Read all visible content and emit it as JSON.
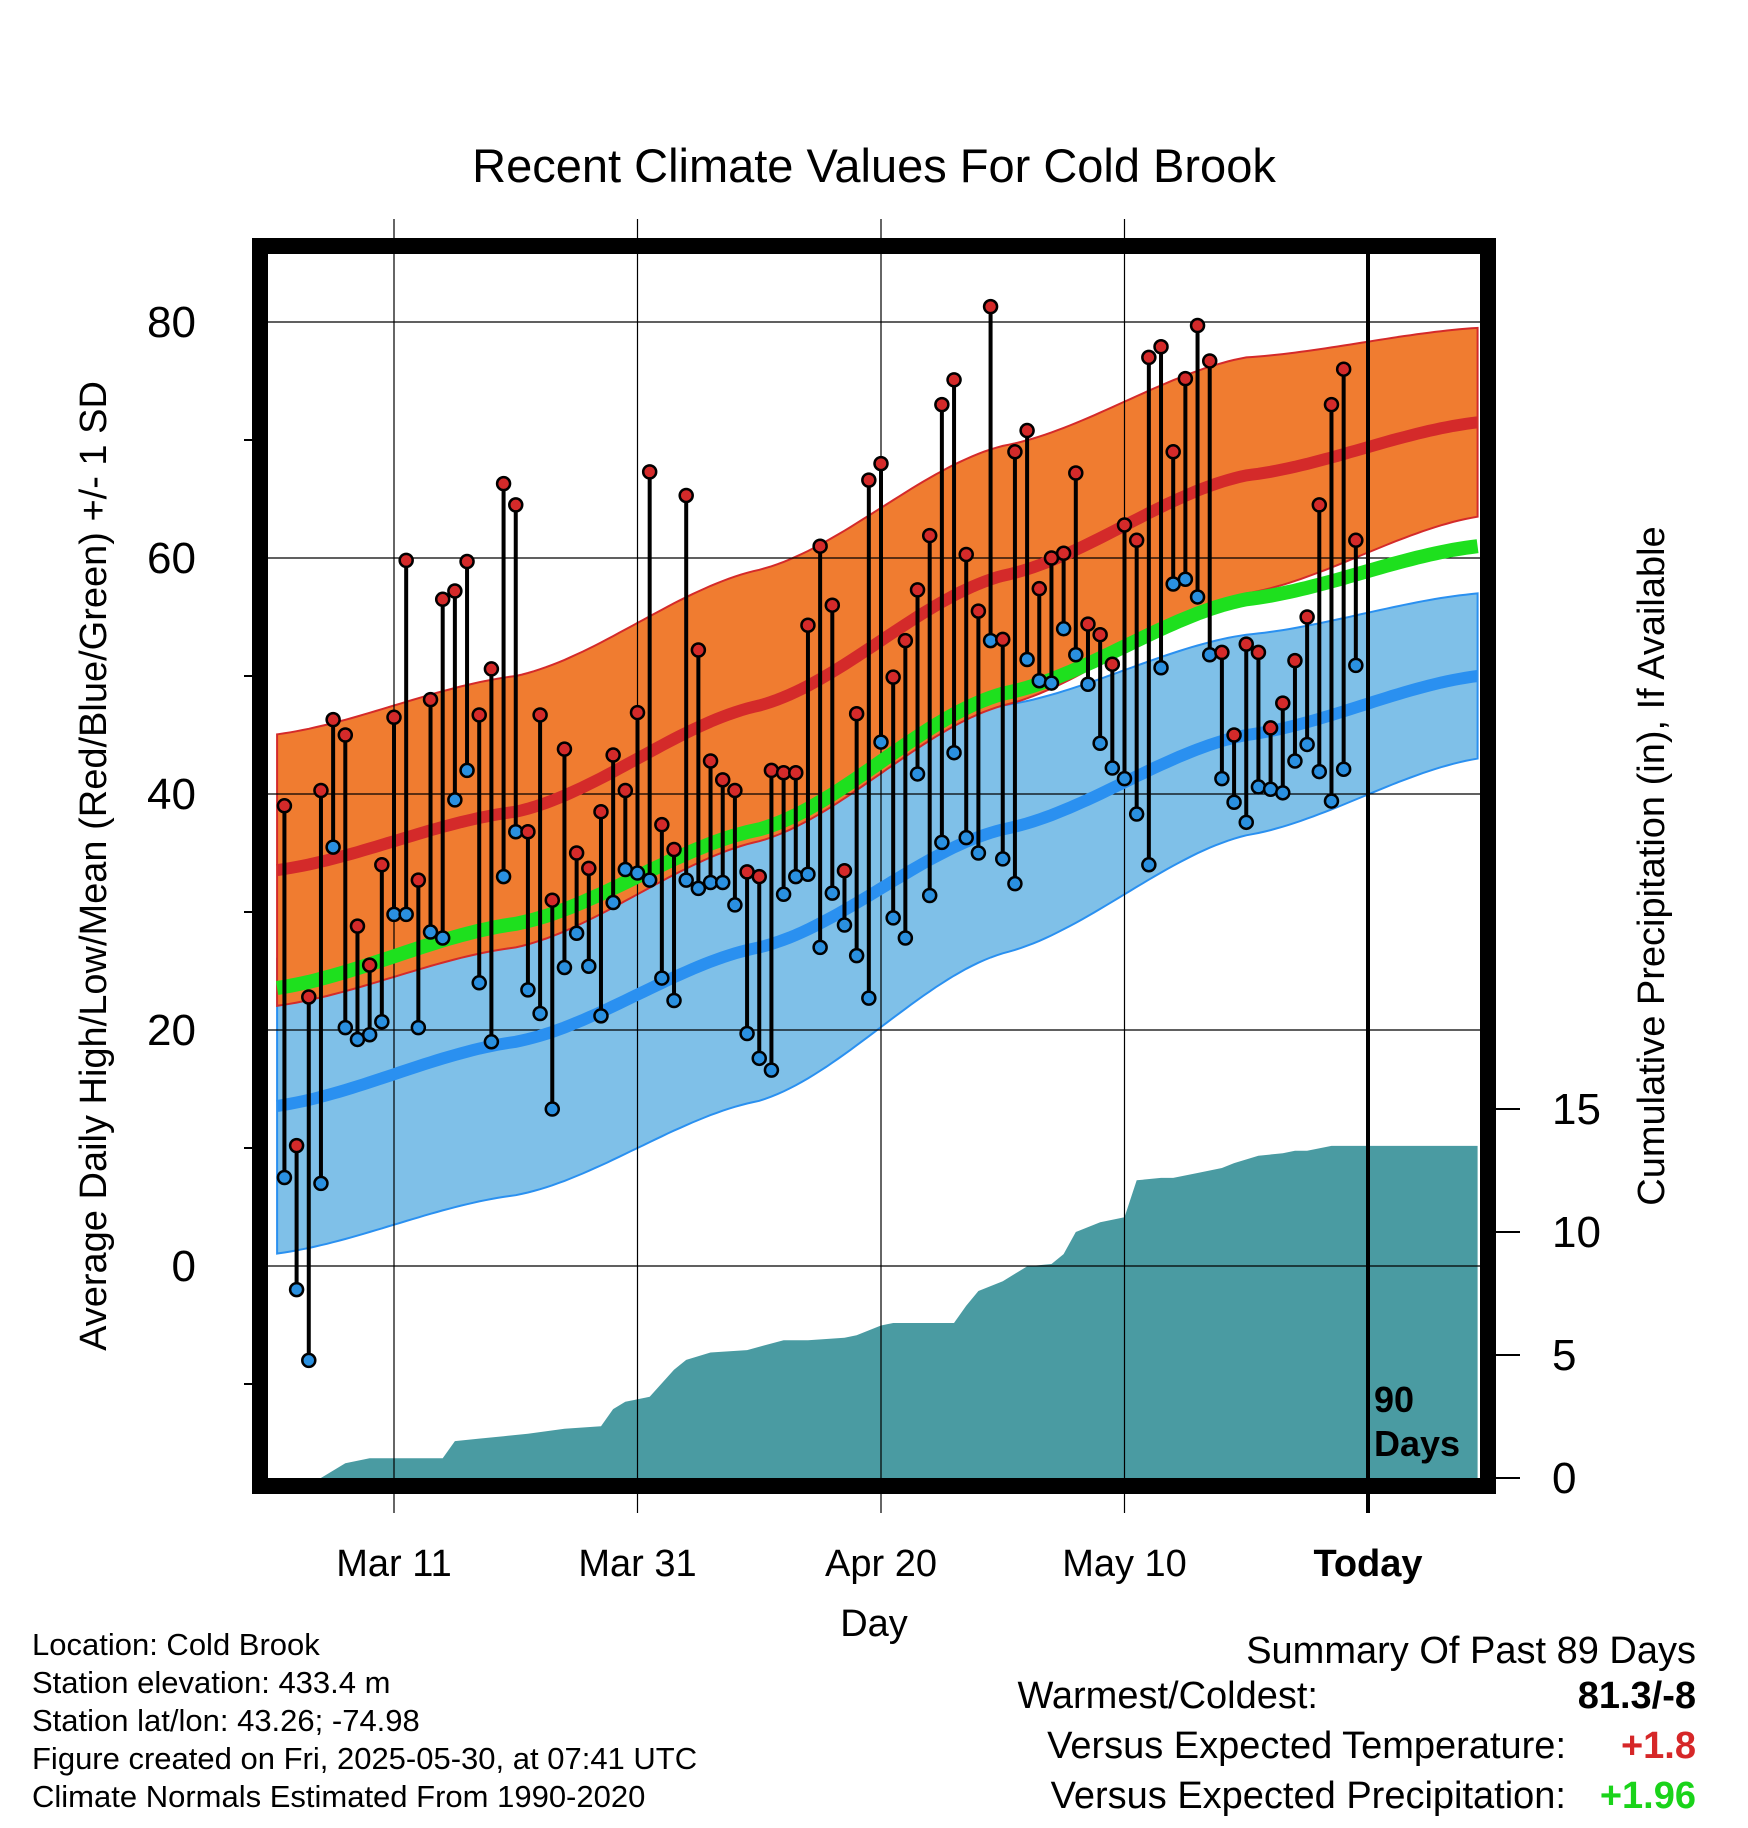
{
  "title": "Recent Climate Values For Cold Brook",
  "meta": {
    "location": "Location: Cold Brook",
    "elevation": "Station elevation: 433.4 m",
    "latlon": "Station lat/lon: 43.26; -74.98",
    "created": "Figure created on Fri, 2025-05-30, at 07:41 UTC",
    "normals": "Climate Normals Estimated From 1990-2020"
  },
  "summary": {
    "heading": "Summary Of Past 89 Days",
    "rows": [
      {
        "label": "Warmest/Coldest:",
        "value": "81.3/-8",
        "color": "#000000"
      },
      {
        "label": "Versus Expected Temperature:",
        "value": "+1.8",
        "color": "#d62728"
      },
      {
        "label": "Versus Expected Precipitation:",
        "value": "+1.96",
        "color": "#1ad31a"
      }
    ]
  },
  "chart_data": {
    "type": "line",
    "title": "Recent Climate Values For Cold Brook",
    "xlabel": "Day",
    "ylabel": "Average Daily High/Low/Mean (Red/Blue/Green) +/- 1 SD",
    "y2label": "Cumulative Precipitation (in), If Available",
    "x_unit": "day",
    "x_range": [
      -90,
      9
    ],
    "ylim": [
      -17,
      83
    ],
    "y_ticks": [
      0,
      20,
      40,
      60,
      80
    ],
    "y2lim": [
      0,
      20
    ],
    "y2_ticks": [
      0,
      5,
      10,
      15
    ],
    "x_ticks": [
      {
        "x": -80,
        "label": "Mar 11"
      },
      {
        "x": -60,
        "label": "Mar 31"
      },
      {
        "x": -40,
        "label": "Apr 20"
      },
      {
        "x": -20,
        "label": "May 10"
      },
      {
        "x": 0,
        "label": "Today"
      }
    ],
    "today_marker": {
      "x": 0,
      "label": "90 Days"
    },
    "grid": true,
    "colors": {
      "high_band": "#f07c30",
      "high_mean": "#d42a2a",
      "low_band": "#7fc0e8",
      "low_mean": "#2a90f0",
      "mean": "#1ee01e",
      "precip": "#4a9ba2",
      "high_point": "#d42a2a",
      "low_point": "#2a90e0"
    },
    "normals": {
      "x": [
        -90,
        -70,
        -50,
        -30,
        -10,
        9
      ],
      "high_mean": [
        33.5,
        38.5,
        47.5,
        58.5,
        67,
        71.5
      ],
      "high_sd": [
        11.5,
        11.5,
        11.5,
        11,
        10,
        8
      ],
      "low_mean": [
        13.5,
        19,
        27,
        37,
        45,
        50
      ],
      "low_sd": [
        12.5,
        13,
        13,
        10.5,
        8.5,
        7
      ],
      "mean": [
        23.5,
        29,
        37,
        48.5,
        56.5,
        61
      ]
    },
    "series": [
      {
        "name": "High",
        "x": [
          -89,
          -88,
          -87,
          -86,
          -85,
          -84,
          -83,
          -82,
          -81,
          -80,
          -79,
          -78,
          -77,
          -76,
          -75,
          -74,
          -73,
          -72,
          -71,
          -70,
          -69,
          -68,
          -67,
          -66,
          -65,
          -64,
          -63,
          -62,
          -61,
          -60,
          -59,
          -58,
          -57,
          -56,
          -55,
          -54,
          -53,
          -52,
          -51,
          -50,
          -49,
          -48,
          -47,
          -46,
          -45,
          -44,
          -43,
          -42,
          -41,
          -40,
          -39,
          -38,
          -37,
          -36,
          -35,
          -34,
          -33,
          -32,
          -31,
          -30,
          -29,
          -28,
          -27,
          -26,
          -25,
          -24,
          -23,
          -22,
          -21,
          -20,
          -19,
          -18,
          -17,
          -16,
          -15,
          -14,
          -13,
          -12,
          -11,
          -10,
          -9,
          -8,
          -7,
          -6,
          -5,
          -4,
          -3,
          -2,
          -1
        ],
        "values": [
          39,
          10.2,
          22.8,
          40.3,
          46.3,
          45,
          28.8,
          25.5,
          34,
          46.5,
          59.8,
          32.7,
          48,
          56.5,
          57.2,
          59.7,
          46.7,
          50.6,
          66.3,
          64.5,
          36.8,
          46.7,
          31,
          43.8,
          35,
          33.7,
          38.5,
          43.3,
          40.3,
          46.9,
          67.3,
          37.4,
          35.3,
          65.3,
          52.2,
          42.8,
          41.2,
          40.3,
          33.4,
          33,
          42,
          41.8,
          41.8,
          54.3,
          61,
          56,
          33.5,
          46.8,
          66.6,
          68,
          49.9,
          53,
          57.3,
          61.9,
          73,
          75.1,
          60.3,
          55.5,
          81.3,
          53.1,
          69,
          70.8,
          57.4,
          60,
          60.4,
          67.2,
          54.4,
          53.5,
          51,
          62.8,
          61.5,
          77,
          77.9,
          69,
          75.2,
          79.7,
          76.7,
          52,
          45,
          52.7,
          52,
          45.6,
          47.7,
          51.3,
          55,
          64.5,
          73,
          76,
          61.5
        ]
      },
      {
        "name": "Low",
        "x": [
          -89,
          -88,
          -87,
          -86,
          -85,
          -84,
          -83,
          -82,
          -81,
          -80,
          -79,
          -78,
          -77,
          -76,
          -75,
          -74,
          -73,
          -72,
          -71,
          -70,
          -69,
          -68,
          -67,
          -66,
          -65,
          -64,
          -63,
          -62,
          -61,
          -60,
          -59,
          -58,
          -57,
          -56,
          -55,
          -54,
          -53,
          -52,
          -51,
          -50,
          -49,
          -48,
          -47,
          -46,
          -45,
          -44,
          -43,
          -42,
          -41,
          -40,
          -39,
          -38,
          -37,
          -36,
          -35,
          -34,
          -33,
          -32,
          -31,
          -30,
          -29,
          -28,
          -27,
          -26,
          -25,
          -24,
          -23,
          -22,
          -21,
          -20,
          -19,
          -18,
          -17,
          -16,
          -15,
          -14,
          -13,
          -12,
          -11,
          -10,
          -9,
          -8,
          -7,
          -6,
          -5,
          -4,
          -3,
          -2,
          -1
        ],
        "values": [
          7.5,
          -2,
          -8,
          7,
          35.5,
          20.2,
          19.2,
          19.6,
          20.7,
          29.8,
          29.8,
          20.2,
          28.3,
          27.8,
          39.5,
          42,
          24,
          19,
          33,
          36.8,
          23.4,
          21.4,
          13.3,
          25.3,
          28.2,
          25.4,
          21.2,
          30.8,
          33.6,
          33.3,
          32.7,
          24.4,
          22.5,
          32.7,
          32,
          32.5,
          32.5,
          30.6,
          19.7,
          17.6,
          16.6,
          31.5,
          33,
          33.2,
          27,
          31.6,
          28.9,
          26.3,
          22.7,
          44.4,
          29.5,
          27.8,
          41.7,
          31.4,
          35.9,
          43.5,
          36.3,
          35,
          53,
          34.5,
          32.4,
          51.4,
          49.6,
          49.4,
          54,
          51.8,
          49.3,
          44.3,
          42.2,
          41.3,
          38.3,
          34,
          50.7,
          57.8,
          58.2,
          56.7,
          51.8,
          41.3,
          39.3,
          37.6,
          40.6,
          40.4,
          40.1,
          42.8,
          44.2,
          41.9,
          39.4,
          42.1,
          50.9
        ]
      },
      {
        "name": "Cumulative Precipitation",
        "x": [
          -86,
          -84,
          -82,
          -80,
          -78,
          -76,
          -75,
          -73,
          -71,
          -69,
          -66,
          -63,
          -62,
          -61,
          -60,
          -59,
          -57,
          -56,
          -54,
          -51,
          -48,
          -46,
          -43,
          -42,
          -41,
          -40,
          -39,
          -38,
          -36,
          -34,
          -33,
          -32,
          -30,
          -28,
          -26,
          -25,
          -24,
          -23,
          -22,
          -20,
          -19,
          -17,
          -16,
          -14,
          -12,
          -11,
          -9,
          -7,
          -6,
          -5,
          -3,
          -2,
          -1,
          0,
          9
        ],
        "values": [
          0,
          0.6,
          0.8,
          0.8,
          0.8,
          0.8,
          1.5,
          1.6,
          1.7,
          1.8,
          2,
          2.1,
          2.8,
          3.1,
          3.2,
          3.3,
          4.4,
          4.8,
          5.1,
          5.2,
          5.6,
          5.6,
          5.7,
          5.8,
          6.0,
          6.2,
          6.3,
          6.3,
          6.3,
          6.3,
          7.0,
          7.6,
          8.0,
          8.6,
          8.7,
          9.1,
          10.0,
          10.2,
          10.4,
          10.6,
          12.1,
          12.2,
          12.2,
          12.4,
          12.6,
          12.8,
          13.1,
          13.2,
          13.3,
          13.3,
          13.5,
          13.5,
          13.5,
          13.5,
          13.5
        ]
      }
    ]
  }
}
